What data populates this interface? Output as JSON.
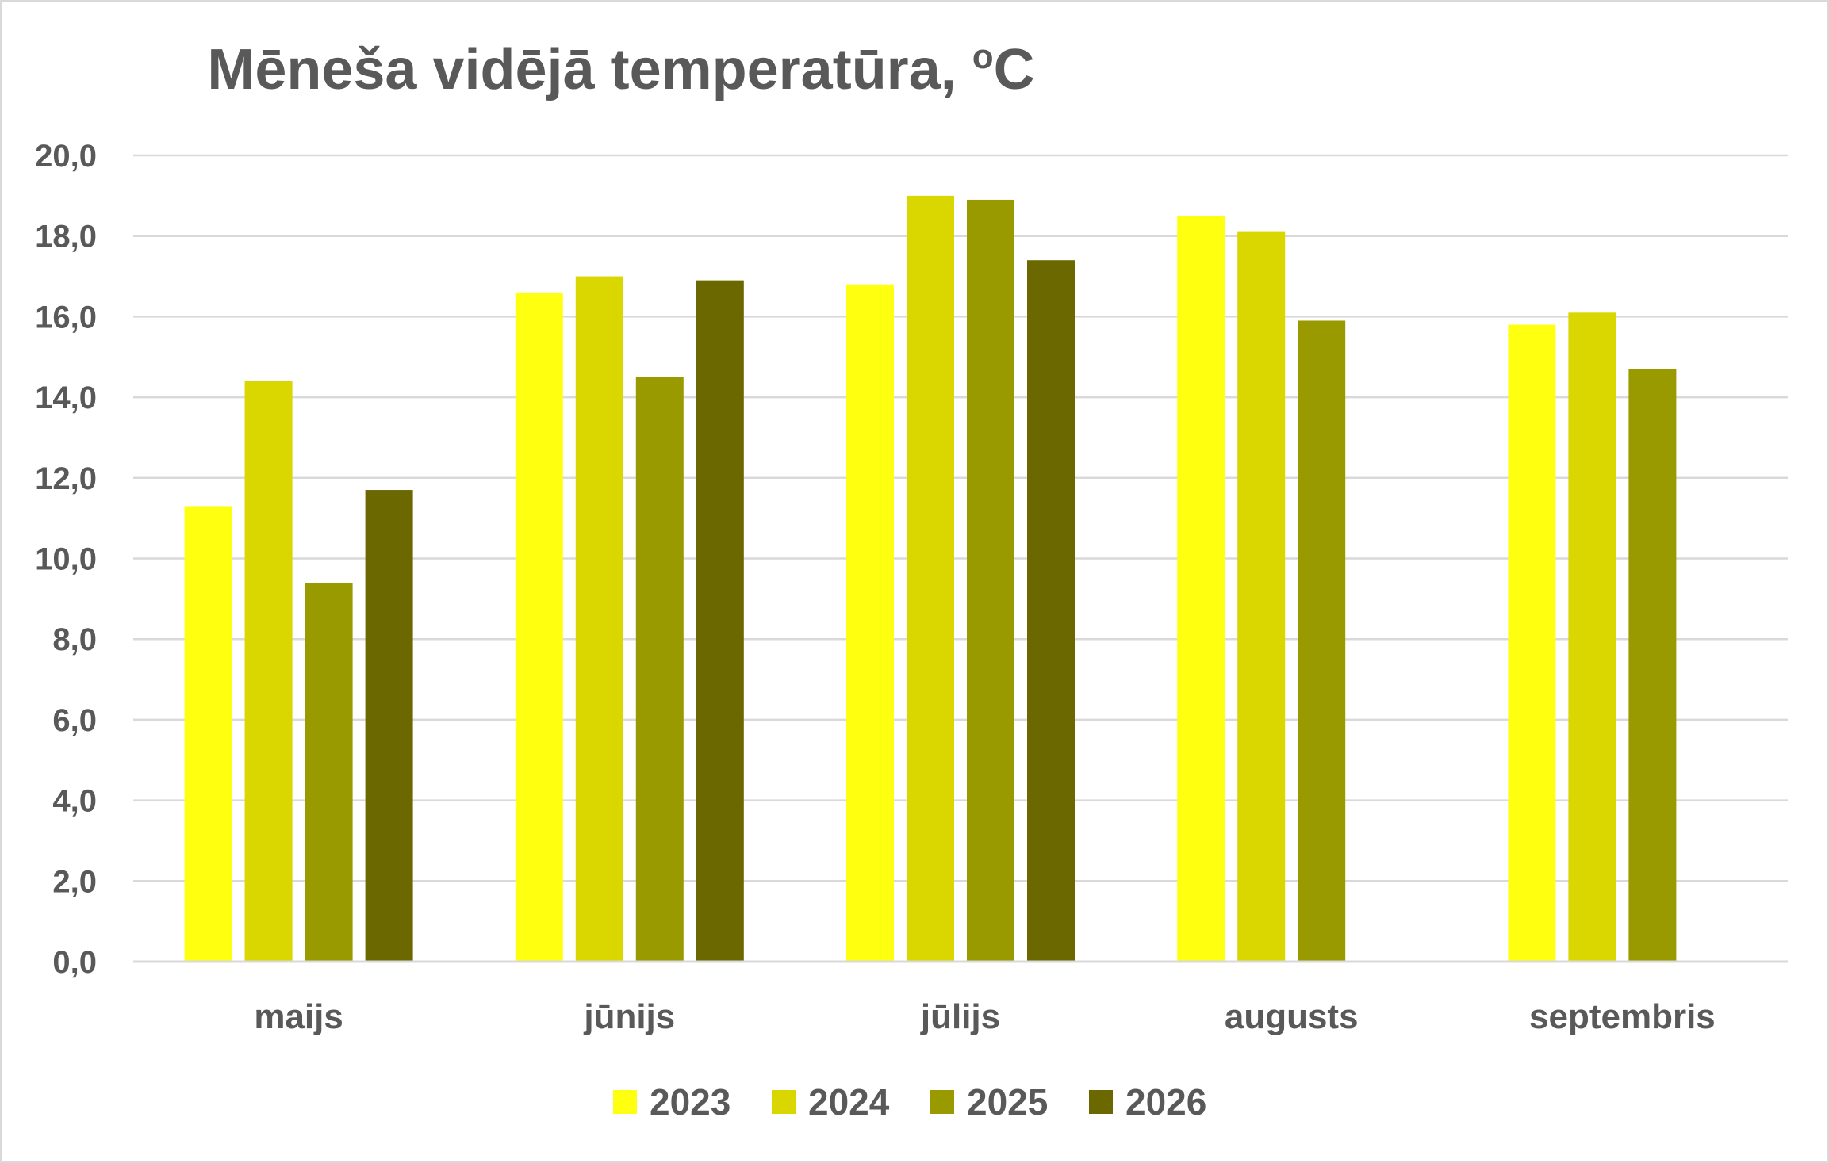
{
  "chart_data": {
    "type": "bar",
    "title_main": "Mēneša vidējā temperatūra, ",
    "title_sup": "o",
    "title_unit": "C",
    "categories": [
      "maijs",
      "jūnijs",
      "jūlijs",
      "augusts",
      "septembris"
    ],
    "series": [
      {
        "name": "2023",
        "color": "#FFFF10",
        "values": [
          11.3,
          16.6,
          16.8,
          18.5,
          15.8
        ]
      },
      {
        "name": "2024",
        "color": "#D9D600",
        "values": [
          14.4,
          17.0,
          19.0,
          18.1,
          16.1
        ]
      },
      {
        "name": "2025",
        "color": "#999900",
        "values": [
          9.4,
          14.5,
          18.9,
          15.9,
          14.7
        ]
      },
      {
        "name": "2026",
        "color": "#6B6800",
        "values": [
          11.7,
          16.9,
          17.4,
          null,
          null
        ]
      }
    ],
    "yticks": [
      "0,0",
      "2,0",
      "4,0",
      "6,0",
      "8,0",
      "10,0",
      "12,0",
      "14,0",
      "16,0",
      "18,0",
      "20,0"
    ],
    "ylim": [
      0,
      20
    ],
    "grid": true,
    "legend_position": "bottom"
  }
}
